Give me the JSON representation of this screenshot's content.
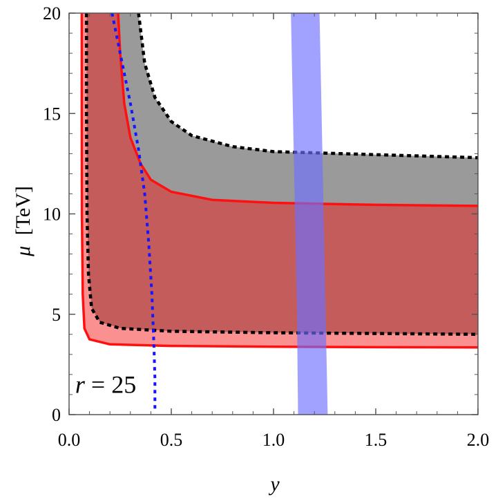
{
  "chart_data": {
    "type": "area",
    "xlabel": "y",
    "ylabel_symbol": "μ",
    "ylabel_unit": "[TeV]",
    "xlim": [
      0,
      2
    ],
    "ylim": [
      0,
      20
    ],
    "xticks": [
      0.0,
      0.5,
      1.0,
      1.5,
      2.0
    ],
    "xtick_labels": [
      "0.0",
      "0.5",
      "1.0",
      "1.5",
      "2.0"
    ],
    "yticks": [
      0,
      5,
      10,
      15,
      20
    ],
    "ytick_labels": [
      "0",
      "5",
      "10",
      "15",
      "20"
    ],
    "grid": false,
    "annotation": {
      "var": "r",
      "rest": " = 25",
      "x": 0.03,
      "y": 1.5
    },
    "series": [
      {
        "kind": "band",
        "fill": "#9a9a9a",
        "upper": [
          [
            0.34,
            20.0
          ],
          [
            0.37,
            17.5
          ],
          [
            0.42,
            15.8
          ],
          [
            0.5,
            14.6
          ],
          [
            0.6,
            13.9
          ],
          [
            0.8,
            13.35
          ],
          [
            1.0,
            13.1
          ],
          [
            1.5,
            12.95
          ],
          [
            2.0,
            12.8
          ]
        ],
        "lower": [
          [
            0.24,
            20.0
          ],
          [
            0.25,
            18.0
          ],
          [
            0.27,
            15.5
          ],
          [
            0.3,
            13.8
          ],
          [
            0.35,
            12.5
          ],
          [
            0.4,
            11.7
          ],
          [
            0.5,
            11.1
          ],
          [
            0.7,
            10.7
          ],
          [
            1.0,
            10.55
          ],
          [
            1.5,
            10.45
          ],
          [
            2.0,
            10.4
          ]
        ]
      },
      {
        "kind": "band",
        "fill": "#c45c5c",
        "upper": [
          [
            0.24,
            20.0
          ],
          [
            0.25,
            18.0
          ],
          [
            0.27,
            15.5
          ],
          [
            0.3,
            13.8
          ],
          [
            0.35,
            12.5
          ],
          [
            0.4,
            11.7
          ],
          [
            0.5,
            11.1
          ],
          [
            0.7,
            10.7
          ],
          [
            1.0,
            10.55
          ],
          [
            1.5,
            10.45
          ],
          [
            2.0,
            10.4
          ]
        ],
        "lower": [
          [
            0.085,
            20.0
          ],
          [
            0.085,
            15.0
          ],
          [
            0.088,
            10.0
          ],
          [
            0.095,
            7.0
          ],
          [
            0.11,
            5.3
          ],
          [
            0.15,
            4.6
          ],
          [
            0.25,
            4.3
          ],
          [
            0.5,
            4.15
          ],
          [
            1.0,
            4.08
          ],
          [
            1.5,
            4.04
          ],
          [
            2.0,
            4.0
          ]
        ]
      },
      {
        "kind": "band",
        "fill": "#fb9090",
        "upper": [
          [
            0.085,
            20.0
          ],
          [
            0.085,
            15.0
          ],
          [
            0.088,
            10.0
          ],
          [
            0.095,
            7.0
          ],
          [
            0.11,
            5.3
          ],
          [
            0.15,
            4.6
          ],
          [
            0.25,
            4.3
          ],
          [
            0.5,
            4.15
          ],
          [
            1.0,
            4.08
          ],
          [
            1.5,
            4.04
          ],
          [
            2.0,
            4.0
          ]
        ],
        "lower": [
          [
            0.062,
            20.0
          ],
          [
            0.062,
            15.0
          ],
          [
            0.063,
            10.0
          ],
          [
            0.067,
            6.0
          ],
          [
            0.075,
            4.3
          ],
          [
            0.1,
            3.75
          ],
          [
            0.2,
            3.5
          ],
          [
            0.5,
            3.42
          ],
          [
            1.0,
            3.38
          ],
          [
            1.5,
            3.36
          ],
          [
            2.0,
            3.35
          ]
        ]
      },
      {
        "kind": "line",
        "color": "#000000",
        "dash": "6,5",
        "width": 4.5,
        "points": [
          [
            0.34,
            20.0
          ],
          [
            0.37,
            17.5
          ],
          [
            0.42,
            15.8
          ],
          [
            0.5,
            14.6
          ],
          [
            0.6,
            13.9
          ],
          [
            0.8,
            13.35
          ],
          [
            1.0,
            13.1
          ],
          [
            1.5,
            12.95
          ],
          [
            2.0,
            12.8
          ]
        ]
      },
      {
        "kind": "line",
        "color": "#000000",
        "dash": "6,5",
        "width": 4.5,
        "points": [
          [
            0.085,
            20.0
          ],
          [
            0.085,
            15.0
          ],
          [
            0.088,
            10.0
          ],
          [
            0.095,
            7.0
          ],
          [
            0.11,
            5.3
          ],
          [
            0.15,
            4.6
          ],
          [
            0.25,
            4.3
          ],
          [
            0.5,
            4.15
          ],
          [
            1.0,
            4.08
          ],
          [
            1.5,
            4.04
          ],
          [
            2.0,
            4.0
          ]
        ]
      },
      {
        "kind": "line",
        "color": "#ff1010",
        "dash": "",
        "width": 3.5,
        "points": [
          [
            0.24,
            20.0
          ],
          [
            0.25,
            18.0
          ],
          [
            0.27,
            15.5
          ],
          [
            0.3,
            13.8
          ],
          [
            0.35,
            12.5
          ],
          [
            0.4,
            11.7
          ],
          [
            0.5,
            11.1
          ],
          [
            0.7,
            10.7
          ],
          [
            1.0,
            10.55
          ],
          [
            1.5,
            10.45
          ],
          [
            2.0,
            10.4
          ]
        ]
      },
      {
        "kind": "line",
        "color": "#ff1010",
        "dash": "",
        "width": 3.5,
        "points": [
          [
            0.062,
            20.0
          ],
          [
            0.062,
            15.0
          ],
          [
            0.063,
            10.0
          ],
          [
            0.067,
            6.0
          ],
          [
            0.075,
            4.3
          ],
          [
            0.1,
            3.75
          ],
          [
            0.2,
            3.5
          ],
          [
            0.5,
            3.42
          ],
          [
            1.0,
            3.38
          ],
          [
            1.5,
            3.36
          ],
          [
            2.0,
            3.35
          ]
        ]
      },
      {
        "kind": "band",
        "fill": "rgba(110,110,255,0.65)",
        "upper": [
          [
            1.12,
            0.0
          ],
          [
            1.115,
            5.0
          ],
          [
            1.105,
            10.0
          ],
          [
            1.095,
            15.0
          ],
          [
            1.085,
            20.0
          ]
        ],
        "lower": [
          [
            1.265,
            0.0
          ],
          [
            1.255,
            5.0
          ],
          [
            1.245,
            10.0
          ],
          [
            1.235,
            15.0
          ],
          [
            1.225,
            20.0
          ]
        ]
      },
      {
        "kind": "line",
        "color": "#1515ff",
        "dash": "5,6",
        "width": 4,
        "points": [
          [
            0.21,
            20.0
          ],
          [
            0.25,
            18.0
          ],
          [
            0.3,
            15.5
          ],
          [
            0.34,
            13.2
          ],
          [
            0.37,
            11.0
          ],
          [
            0.39,
            8.5
          ],
          [
            0.405,
            6.0
          ],
          [
            0.415,
            3.5
          ],
          [
            0.42,
            1.8
          ],
          [
            0.42,
            0.1
          ]
        ]
      }
    ]
  }
}
